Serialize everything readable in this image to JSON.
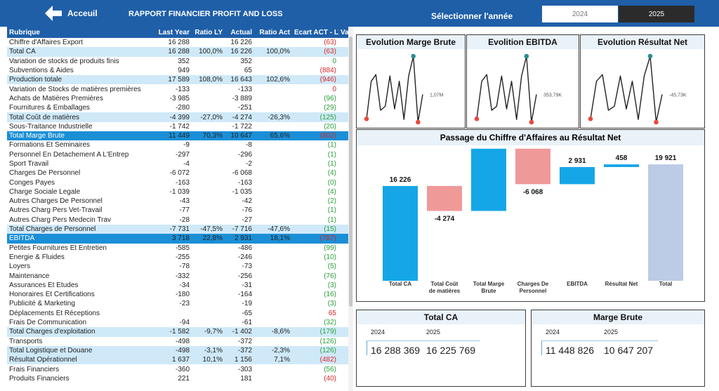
{
  "header": {
    "back_label": "Acceuil",
    "title": "RAPPORT FINANCIER PROFIT AND LOSS",
    "select_label": "Sélectionner l'année",
    "years": [
      "2024",
      "2025"
    ]
  },
  "table": {
    "columns": [
      "Rubrique",
      "Last Year",
      "Ratio LY",
      "Actual",
      "Ratio Act",
      "Ecart ACT - LY",
      "Va"
    ],
    "rows": [
      {
        "type": "normal",
        "label": "Chiffre d'Affaires Export",
        "ly": "16 288",
        "rly": "",
        "act": "16 226",
        "ract": "",
        "ecart": "(63)",
        "ec": "red"
      },
      {
        "type": "sub",
        "label": "Total CA",
        "ly": "16 288",
        "rly": "100,0%",
        "act": "16 226",
        "ract": "100,0%",
        "ecart": "(63)",
        "ec": "red"
      },
      {
        "type": "normal",
        "label": "Variation de stocks de produits finis",
        "ly": "352",
        "rly": "",
        "act": "352",
        "ract": "",
        "ecart": "0",
        "ec": "green"
      },
      {
        "type": "normal",
        "label": "Subventions & Aides",
        "ly": "949",
        "rly": "",
        "act": "65",
        "ract": "",
        "ecart": "(884)",
        "ec": "red"
      },
      {
        "type": "sub",
        "label": "Production totale",
        "ly": "17 589",
        "rly": "108,0%",
        "act": "16 643",
        "ract": "102,6%",
        "ecart": "(946)",
        "ec": "red"
      },
      {
        "type": "normal",
        "label": "Variation de Stocks de matières premières",
        "ly": "-133",
        "rly": "",
        "act": "-133",
        "ract": "",
        "ecart": "0",
        "ec": "red"
      },
      {
        "type": "normal",
        "label": "Achats de Matières Premières",
        "ly": "-3 985",
        "rly": "",
        "act": "-3 889",
        "ract": "",
        "ecart": "(96)",
        "ec": "green"
      },
      {
        "type": "normal",
        "label": "Fournitures & Emballages",
        "ly": "-280",
        "rly": "",
        "act": "-251",
        "ract": "",
        "ecart": "(29)",
        "ec": "green"
      },
      {
        "type": "sub",
        "label": "Total Coût de matières",
        "ly": "-4 399",
        "rly": "-27,0%",
        "act": "-4 274",
        "ract": "-26,3%",
        "ecart": "(125)",
        "ec": "green"
      },
      {
        "type": "normal",
        "label": "Sous-Traitance Industrielle",
        "ly": "-1 742",
        "rly": "",
        "act": "-1 722",
        "ract": "",
        "ecart": "(20)",
        "ec": "green"
      },
      {
        "type": "major",
        "label": "Total Marge Brute",
        "ly": "11 449",
        "rly": "70,3%",
        "act": "10 647",
        "ract": "65,6%",
        "ecart": "(802)",
        "ec": "red"
      },
      {
        "type": "normal",
        "label": "Formations Et Seminaires",
        "ly": "-9",
        "rly": "",
        "act": "-8",
        "ract": "",
        "ecart": "(1)",
        "ec": "green"
      },
      {
        "type": "normal",
        "label": "Personnel En Detachement A L'Entrep",
        "ly": "-297",
        "rly": "",
        "act": "-296",
        "ract": "",
        "ecart": "(1)",
        "ec": "green"
      },
      {
        "type": "normal",
        "label": "Sport Travail",
        "ly": "-4",
        "rly": "",
        "act": "-2",
        "ract": "",
        "ecart": "(1)",
        "ec": "green"
      },
      {
        "type": "normal",
        "label": "Charges De Personnel",
        "ly": "-6 072",
        "rly": "",
        "act": "-6 068",
        "ract": "",
        "ecart": "(4)",
        "ec": "green"
      },
      {
        "type": "normal",
        "label": "Conges Payes",
        "ly": "-163",
        "rly": "",
        "act": "-163",
        "ract": "",
        "ecart": "(0)",
        "ec": "green"
      },
      {
        "type": "normal",
        "label": "Charge Sociale Legale",
        "ly": "-1 039",
        "rly": "",
        "act": "-1 035",
        "ract": "",
        "ecart": "(4)",
        "ec": "green"
      },
      {
        "type": "normal",
        "label": "Autres Charges De Personnel",
        "ly": "-43",
        "rly": "",
        "act": "-42",
        "ract": "",
        "ecart": "(2)",
        "ec": "green"
      },
      {
        "type": "normal",
        "label": "Autres Charg Pers Vet-Travail",
        "ly": "-77",
        "rly": "",
        "act": "-76",
        "ract": "",
        "ecart": "(1)",
        "ec": "green"
      },
      {
        "type": "normal",
        "label": "Autres Charg Pers Medecin Trav",
        "ly": "-28",
        "rly": "",
        "act": "-27",
        "ract": "",
        "ecart": "(1)",
        "ec": "green"
      },
      {
        "type": "sub",
        "label": "Total Charges de Personnel",
        "ly": "-7 731",
        "rly": "-47,5%",
        "act": "-7 716",
        "ract": "-47,6%",
        "ecart": "(15)",
        "ec": "green"
      },
      {
        "type": "major",
        "label": "EBITDA",
        "ly": "3 718",
        "rly": "22,8%",
        "act": "2 931",
        "ract": "18,1%",
        "ecart": "(787)",
        "ec": "red"
      },
      {
        "type": "normal",
        "label": "Petites Fournitures Et Entretien",
        "ly": "-585",
        "rly": "",
        "act": "-486",
        "ract": "",
        "ecart": "(99)",
        "ec": "green"
      },
      {
        "type": "normal",
        "label": "Energie & Fluides",
        "ly": "-255",
        "rly": "",
        "act": "-246",
        "ract": "",
        "ecart": "(10)",
        "ec": "green"
      },
      {
        "type": "normal",
        "label": "Loyers",
        "ly": "-78",
        "rly": "",
        "act": "-73",
        "ract": "",
        "ecart": "(5)",
        "ec": "green"
      },
      {
        "type": "normal",
        "label": "Maintenance",
        "ly": "-332",
        "rly": "",
        "act": "-256",
        "ract": "",
        "ecart": "(76)",
        "ec": "green"
      },
      {
        "type": "normal",
        "label": "Assurances Et Etudes",
        "ly": "-34",
        "rly": "",
        "act": "-31",
        "ract": "",
        "ecart": "(3)",
        "ec": "green"
      },
      {
        "type": "normal",
        "label": "Honoraires Et Certifications",
        "ly": "-180",
        "rly": "",
        "act": "-164",
        "ract": "",
        "ecart": "(16)",
        "ec": "green"
      },
      {
        "type": "normal",
        "label": "Publicité & Marketing",
        "ly": "-23",
        "rly": "",
        "act": "-19",
        "ract": "",
        "ecart": "(3)",
        "ec": "green"
      },
      {
        "type": "normal",
        "label": "Déplacements Et Réceptions",
        "ly": "",
        "rly": "",
        "act": "-65",
        "ract": "",
        "ecart": "65",
        "ec": "red"
      },
      {
        "type": "normal",
        "label": "Frais De Communication",
        "ly": "-94",
        "rly": "",
        "act": "-61",
        "ract": "",
        "ecart": "(32)",
        "ec": "green"
      },
      {
        "type": "sub",
        "label": "Total Charges d'exploitation",
        "ly": "-1 582",
        "rly": "-9,7%",
        "act": "-1 402",
        "ract": "-8,6%",
        "ecart": "(179)",
        "ec": "green"
      },
      {
        "type": "normal",
        "label": "Transports",
        "ly": "-498",
        "rly": "",
        "act": "-372",
        "ract": "",
        "ecart": "(126)",
        "ec": "green"
      },
      {
        "type": "sub",
        "label": "Total Logistique et Douane",
        "ly": "-498",
        "rly": "-3,1%",
        "act": "-372",
        "ract": "-2,3%",
        "ecart": "(126)",
        "ec": "green"
      },
      {
        "type": "sub",
        "label": "Résultat Opérationnel",
        "ly": "1 637",
        "rly": "10,1%",
        "act": "1 156",
        "ract": "7,1%",
        "ecart": "(482)",
        "ec": "red"
      },
      {
        "type": "normal",
        "label": "Frais Financiers",
        "ly": "-360",
        "rly": "",
        "act": "-303",
        "ract": "",
        "ecart": "(56)",
        "ec": "green"
      },
      {
        "type": "normal",
        "label": "Produits Financiers",
        "ly": "221",
        "rly": "",
        "act": "181",
        "ract": "",
        "ecart": "(40)",
        "ec": "red"
      }
    ]
  },
  "sparklines": [
    {
      "title": "Evolution Marge Brute",
      "end_label": "1,07M",
      "values": [
        5,
        62,
        72,
        18,
        24,
        70,
        20,
        62,
        4,
        70,
        100,
        0,
        42
      ]
    },
    {
      "title": "Evolition EBITDA",
      "end_label": "353,79K",
      "values": [
        5,
        62,
        72,
        18,
        24,
        70,
        20,
        62,
        4,
        70,
        100,
        0,
        42
      ]
    },
    {
      "title": "Evolution Résultat Net",
      "end_label": "-45,73K",
      "values": [
        5,
        62,
        72,
        18,
        24,
        70,
        20,
        62,
        4,
        70,
        100,
        0,
        42
      ]
    }
  ],
  "chart_data": {
    "type": "waterfall",
    "title": "Passage du Chiffre d'Affaires au Résultat Net",
    "categories": [
      "Total CA",
      "Total Coût de matières",
      "Total Marge Brute",
      "Charges De Personnel",
      "EBITDA",
      "Résultat Net",
      "Total"
    ],
    "values": [
      16226,
      -4274,
      10647,
      -6068,
      2931,
      458,
      19921
    ],
    "labels": [
      "16 226",
      "-4 274",
      "10 647",
      "-6 068",
      "2 931",
      "458",
      "19 921"
    ],
    "kinds": [
      "up",
      "down",
      "up",
      "down",
      "up",
      "up",
      "total"
    ],
    "colors": {
      "up": "#15a6e8",
      "down": "#f09999",
      "total": "#bccbe6"
    }
  },
  "kpis": [
    {
      "title": "Total CA",
      "y1": "2024",
      "y2": "2025",
      "v1": "16 288 369",
      "v2": "16 225 769"
    },
    {
      "title": "Marge Brute",
      "y1": "2024",
      "y2": "2025",
      "v1": "11 448 826",
      "v2": "10 647 207"
    }
  ]
}
